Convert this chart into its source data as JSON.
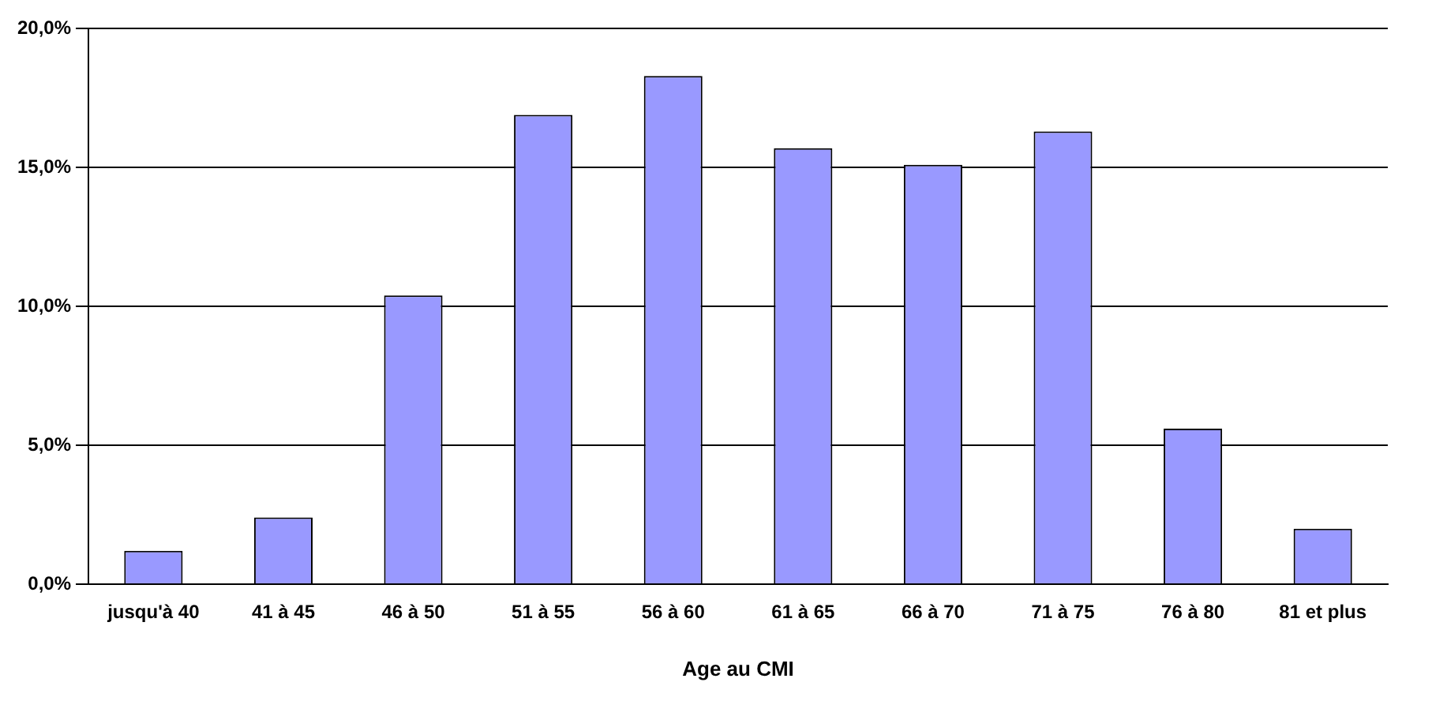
{
  "chart_data": {
    "type": "bar",
    "xlabel": "Age au CMI",
    "categories": [
      "jusqu'à 40",
      "41 à 45",
      "46 à 50",
      "51 à 55",
      "56 à 60",
      "61 à 65",
      "66 à 70",
      "71 à 75",
      "76 à 80",
      "81 et plus"
    ],
    "values": [
      1.2,
      2.4,
      10.4,
      16.9,
      18.3,
      15.7,
      15.1,
      16.3,
      5.6,
      2.0
    ],
    "color": "#9999ff",
    "ylim": [
      0,
      20
    ],
    "yticks": [
      {
        "value": 0,
        "label": "0,0%"
      },
      {
        "value": 5,
        "label": "5,0%"
      },
      {
        "value": 10,
        "label": "10,0%"
      },
      {
        "value": 15,
        "label": "15,0%"
      },
      {
        "value": 20,
        "label": "20,0%"
      }
    ],
    "grid": "y",
    "legend": false
  }
}
